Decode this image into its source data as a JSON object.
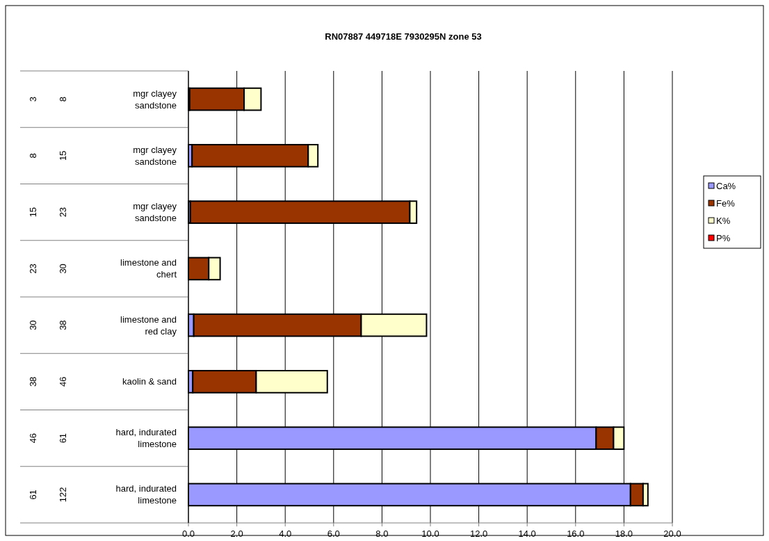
{
  "chart_data": {
    "type": "bar",
    "orientation": "horizontal",
    "stacked": true,
    "title": "RN07887 449718E 7930295N zone 53",
    "categories": [
      "3\n8\nmgr clayey sandstone",
      "8\n15\nmgr clayey sandstone",
      "15\n23\nmgr clayey sandstone",
      "23\n30\nlimestone and chert",
      "30\n38\nlimestone and red clay",
      "38\n46\nkaolin & sand",
      "46\n61\nhard, indurated limestone",
      "61\n122\nhard, indurated limestone"
    ],
    "series": [
      {
        "name": "Ca%",
        "color": "#9999ff",
        "values": [
          0.05,
          0.15,
          0.08,
          null,
          0.22,
          0.18,
          16.85,
          18.27
        ]
      },
      {
        "name": "Fe%",
        "color": "#993300",
        "values": [
          2.25,
          4.8,
          9.07,
          0.84,
          6.92,
          2.62,
          0.72,
          0.52
        ]
      },
      {
        "name": "K%",
        "color": "#ffffcc",
        "values": [
          0.7,
          0.4,
          0.28,
          0.47,
          2.7,
          2.94,
          0.43,
          0.2
        ]
      },
      {
        "name": "P%",
        "color": "#ff0000",
        "values": [
          0,
          0,
          0,
          0,
          0,
          0,
          0,
          0
        ]
      }
    ],
    "xlim": [
      0,
      20
    ],
    "xticks": [
      {
        "value": 0,
        "label": "0.0"
      },
      {
        "value": 2,
        "label": "2.0"
      },
      {
        "value": 4,
        "label": "4.0"
      },
      {
        "value": 6,
        "label": "6.0"
      },
      {
        "value": 8,
        "label": "8.0"
      },
      {
        "value": 10,
        "label": "10.0"
      },
      {
        "value": 12,
        "label": "12.0"
      },
      {
        "value": 14,
        "label": "14.0"
      },
      {
        "value": 16,
        "label": "16.0"
      },
      {
        "value": 18,
        "label": "18.0"
      },
      {
        "value": 20,
        "label": "20.0"
      }
    ],
    "grid": "x",
    "legend": "right"
  }
}
